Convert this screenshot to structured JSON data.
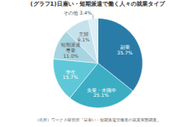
{
  "chart_data": {
    "type": "pie",
    "title": "(グラフ1)日雇い・短期派遣で働く人々の就業タイプ",
    "annotations": [
      "（出所）ワークス研究所「日雇い・短期派遣労働者の就業実態調査」"
    ],
    "categories": [
      "副業",
      "失業・未職中",
      "学生",
      "短期派遣\n専業",
      "主婦",
      "その他"
    ],
    "values": [
      35.7,
      25.1,
      15.7,
      11.0,
      9.1,
      3.4
    ],
    "value_labels": [
      "35.7%",
      "25.1%",
      "15.7%",
      "11.0%",
      "9.1%",
      "3.4%"
    ],
    "colors": [
      "#2a7ca8",
      "#3baec4",
      "#5ec8d8",
      "#a8d4e0",
      "#c5e2ec",
      "#ddeef4"
    ],
    "data_labels": true
  }
}
